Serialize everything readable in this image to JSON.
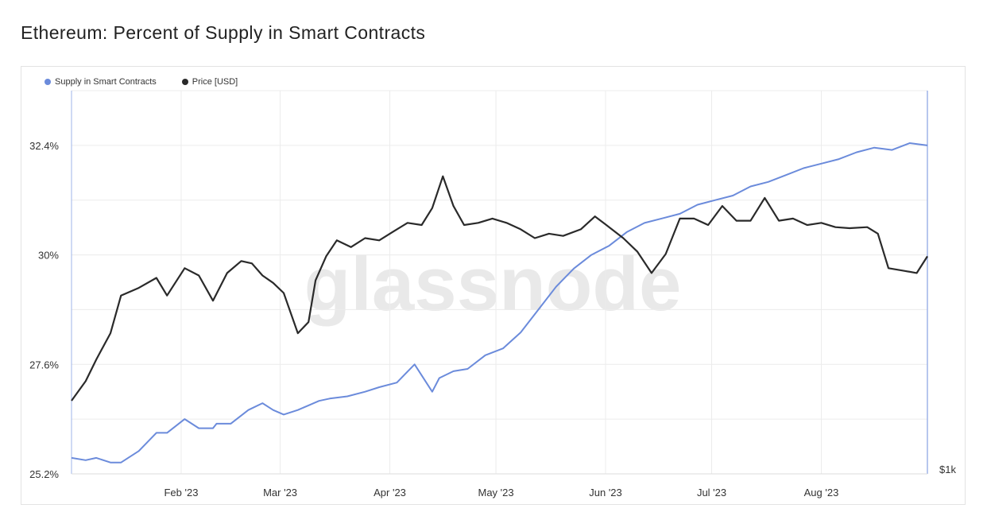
{
  "page": {
    "title": "Ethereum: Percent of Supply in Smart Contracts"
  },
  "watermark": "glassnode",
  "colors": {
    "supply": "#6B8BDB",
    "price": "#2a2a2a",
    "grid": "#ececec"
  },
  "chart_data": {
    "type": "line",
    "title": "Ethereum: Percent of Supply in Smart Contracts",
    "legend": [
      {
        "name": "Supply in Smart Contracts",
        "color": "#6B8BDB"
      },
      {
        "name": "Price [USD]",
        "color": "#2a2a2a"
      }
    ],
    "legend_position": "top-left",
    "grid": true,
    "x_domain": [
      "2023-01-01",
      "2023-08-31"
    ],
    "x_ticks": [
      {
        "date": "2023-02-01",
        "label": "Feb '23"
      },
      {
        "date": "2023-03-01",
        "label": "Mar '23"
      },
      {
        "date": "2023-04-01",
        "label": "Apr '23"
      },
      {
        "date": "2023-05-01",
        "label": "May '23"
      },
      {
        "date": "2023-06-01",
        "label": "Jun '23"
      },
      {
        "date": "2023-07-01",
        "label": "Jul '23"
      },
      {
        "date": "2023-08-01",
        "label": "Aug '23"
      }
    ],
    "y_left": {
      "range": [
        25.2,
        33.6
      ],
      "ticks": [
        {
          "value": 25.2,
          "label": "25.2%"
        },
        {
          "value": 27.6,
          "label": "27.6%"
        },
        {
          "value": 30,
          "label": "30%"
        },
        {
          "value": 32.4,
          "label": "32.4%"
        }
      ]
    },
    "y_right": {
      "scale": "log",
      "ticks": [
        {
          "value": 1000,
          "label": "$1k"
        }
      ]
    },
    "series": [
      {
        "name": "Supply in Smart Contracts",
        "axis": "left",
        "x": [
          "2023-01-01",
          "2023-01-05",
          "2023-01-08",
          "2023-01-12",
          "2023-01-15",
          "2023-01-20",
          "2023-01-25",
          "2023-01-28",
          "2023-02-02",
          "2023-02-06",
          "2023-02-10",
          "2023-02-11",
          "2023-02-15",
          "2023-02-20",
          "2023-02-24",
          "2023-02-27",
          "2023-03-02",
          "2023-03-06",
          "2023-03-09",
          "2023-03-12",
          "2023-03-15",
          "2023-03-20",
          "2023-03-25",
          "2023-03-29",
          "2023-04-03",
          "2023-04-08",
          "2023-04-13",
          "2023-04-15",
          "2023-04-19",
          "2023-04-23",
          "2023-04-28",
          "2023-05-03",
          "2023-05-08",
          "2023-05-13",
          "2023-05-18",
          "2023-05-23",
          "2023-05-28",
          "2023-06-02",
          "2023-06-07",
          "2023-06-12",
          "2023-06-17",
          "2023-06-22",
          "2023-06-27",
          "2023-07-02",
          "2023-07-07",
          "2023-07-12",
          "2023-07-17",
          "2023-07-22",
          "2023-07-27",
          "2023-08-01",
          "2023-08-06",
          "2023-08-11",
          "2023-08-16",
          "2023-08-21",
          "2023-08-26",
          "2023-08-31"
        ],
        "values": [
          25.55,
          25.5,
          25.55,
          25.45,
          25.45,
          25.7,
          26.1,
          26.1,
          26.4,
          26.2,
          26.2,
          26.3,
          26.3,
          26.6,
          26.75,
          26.6,
          26.5,
          26.6,
          26.7,
          26.8,
          26.85,
          26.9,
          27.0,
          27.1,
          27.2,
          27.6,
          27.0,
          27.3,
          27.45,
          27.5,
          27.8,
          27.95,
          28.3,
          28.8,
          29.3,
          29.7,
          30.0,
          30.2,
          30.5,
          30.7,
          30.8,
          30.9,
          31.1,
          31.2,
          31.3,
          31.5,
          31.6,
          31.75,
          31.9,
          32.0,
          32.1,
          32.25,
          32.35,
          32.3,
          32.45,
          32.4
        ]
      },
      {
        "name": "Price [USD]",
        "axis": "right",
        "x": [
          "2023-01-01",
          "2023-01-05",
          "2023-01-08",
          "2023-01-12",
          "2023-01-15",
          "2023-01-20",
          "2023-01-25",
          "2023-01-28",
          "2023-02-02",
          "2023-02-06",
          "2023-02-10",
          "2023-02-14",
          "2023-02-18",
          "2023-02-21",
          "2023-02-24",
          "2023-02-27",
          "2023-03-02",
          "2023-03-06",
          "2023-03-09",
          "2023-03-11",
          "2023-03-14",
          "2023-03-17",
          "2023-03-21",
          "2023-03-25",
          "2023-03-29",
          "2023-04-02",
          "2023-04-06",
          "2023-04-10",
          "2023-04-13",
          "2023-04-16",
          "2023-04-19",
          "2023-04-22",
          "2023-04-26",
          "2023-04-30",
          "2023-05-04",
          "2023-05-08",
          "2023-05-12",
          "2023-05-16",
          "2023-05-20",
          "2023-05-25",
          "2023-05-29",
          "2023-06-02",
          "2023-06-06",
          "2023-06-10",
          "2023-06-14",
          "2023-06-18",
          "2023-06-22",
          "2023-06-26",
          "2023-06-30",
          "2023-07-04",
          "2023-07-08",
          "2023-07-12",
          "2023-07-16",
          "2023-07-20",
          "2023-07-24",
          "2023-07-28",
          "2023-08-01",
          "2023-08-05",
          "2023-08-09",
          "2023-08-14",
          "2023-08-17",
          "2023-08-20",
          "2023-08-24",
          "2023-08-28",
          "2023-08-31"
        ],
        "values": [
          1200,
          1260,
          1330,
          1420,
          1560,
          1590,
          1630,
          1560,
          1670,
          1640,
          1540,
          1650,
          1700,
          1690,
          1640,
          1610,
          1570,
          1420,
          1460,
          1620,
          1720,
          1790,
          1760,
          1800,
          1790,
          1830,
          1870,
          1860,
          1940,
          2100,
          1950,
          1860,
          1870,
          1890,
          1870,
          1840,
          1800,
          1820,
          1810,
          1840,
          1900,
          1850,
          1800,
          1740,
          1650,
          1730,
          1890,
          1890,
          1860,
          1950,
          1880,
          1880,
          1990,
          1880,
          1890,
          1860,
          1870,
          1850,
          1845,
          1850,
          1820,
          1670,
          1660,
          1650,
          1720
        ]
      }
    ]
  }
}
